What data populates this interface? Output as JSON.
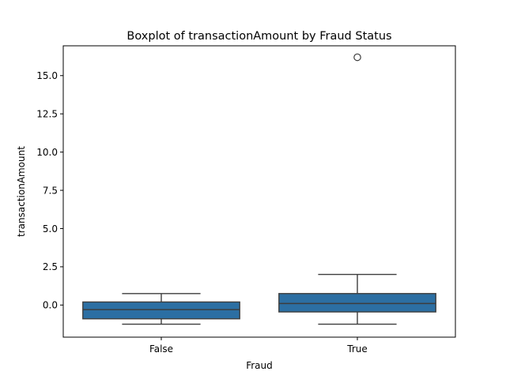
{
  "chart_data": {
    "type": "boxplot",
    "title": "Boxplot of transactionAmount by Fraud Status",
    "xlabel": "Fraud",
    "ylabel": "transactionAmount",
    "categories": [
      "False",
      "True"
    ],
    "boxes": [
      {
        "category": "False",
        "whisker_low": -1.25,
        "q1": -0.9,
        "median": -0.3,
        "q3": 0.2,
        "whisker_high": 0.75,
        "outliers": []
      },
      {
        "category": "True",
        "whisker_low": -1.25,
        "q1": -0.45,
        "median": 0.1,
        "q3": 0.75,
        "whisker_high": 2.0,
        "outliers": [
          16.2
        ]
      }
    ],
    "yticks": [
      "0.0",
      "2.5",
      "5.0",
      "7.5",
      "10.0",
      "12.5",
      "15.0"
    ],
    "ylim": [
      -2.1,
      16.95
    ],
    "grid": false,
    "colors": {
      "box_fill": "#2c6fa3",
      "line": "#3d3d3d",
      "axis": "#000000"
    }
  }
}
